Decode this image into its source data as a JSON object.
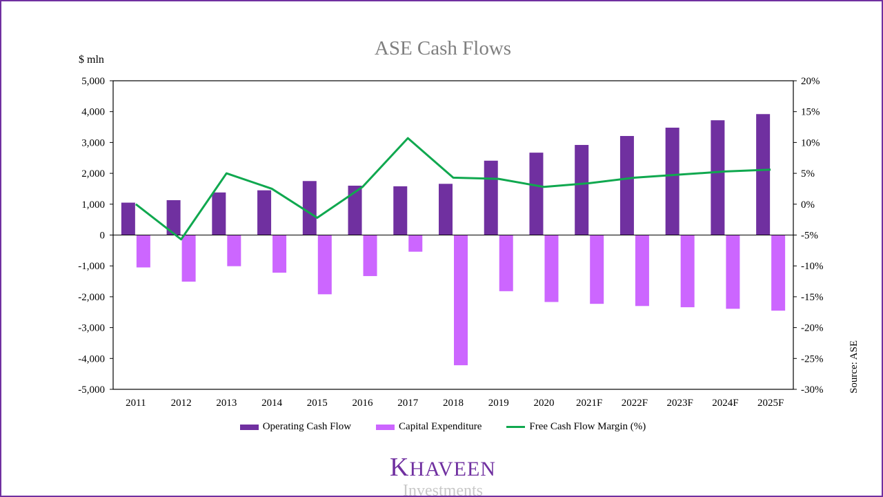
{
  "chart_data": {
    "type": "bar",
    "title": "ASE Cash Flows",
    "ylabel": "$ mln",
    "y2label": "",
    "source": "Source: ASE",
    "categories": [
      "2011",
      "2012",
      "2013",
      "2014",
      "2015",
      "2016",
      "2017",
      "2018",
      "2019",
      "2020",
      "2021F",
      "2022F",
      "2023F",
      "2024F",
      "2025F"
    ],
    "ylim": [
      -5000,
      5000
    ],
    "y_ticks": [
      "5,000",
      "4,000",
      "3,000",
      "2,000",
      "1,000",
      "0",
      "-1,000",
      "-2,000",
      "-3,000",
      "-4,000",
      "-5,000"
    ],
    "y2lim": [
      -30,
      20
    ],
    "y2_ticks": [
      "20%",
      "15%",
      "10%",
      "5%",
      "0%",
      "-5%",
      "-10%",
      "-15%",
      "-20%",
      "-25%",
      "-30%"
    ],
    "grid": false,
    "legend_position": "bottom",
    "series": [
      {
        "name": "Operating Cash Flow",
        "type": "bar",
        "color": "#7030a0",
        "axis": "left",
        "values": [
          1050,
          1130,
          1380,
          1450,
          1750,
          1600,
          1580,
          1660,
          2410,
          2670,
          2920,
          3210,
          3480,
          3720,
          3920
        ]
      },
      {
        "name": "Capital Expenditure",
        "type": "bar",
        "color": "#cc66ff",
        "axis": "left",
        "values": [
          -1050,
          -1510,
          -1010,
          -1220,
          -1920,
          -1330,
          -540,
          -4220,
          -1820,
          -2170,
          -2230,
          -2300,
          -2340,
          -2390,
          -2450
        ]
      },
      {
        "name": "Free Cash Flow Margin (%)",
        "type": "line",
        "color": "#10a84f",
        "axis": "right",
        "values": [
          0.0,
          -5.7,
          5.0,
          2.5,
          -2.2,
          2.8,
          10.7,
          4.3,
          4.1,
          2.8,
          3.4,
          4.3,
          4.8,
          5.3,
          5.6
        ]
      }
    ]
  },
  "branding": {
    "logo_main_first": "K",
    "logo_main_rest": "HAVEEN",
    "logo_sub": "Investments"
  }
}
